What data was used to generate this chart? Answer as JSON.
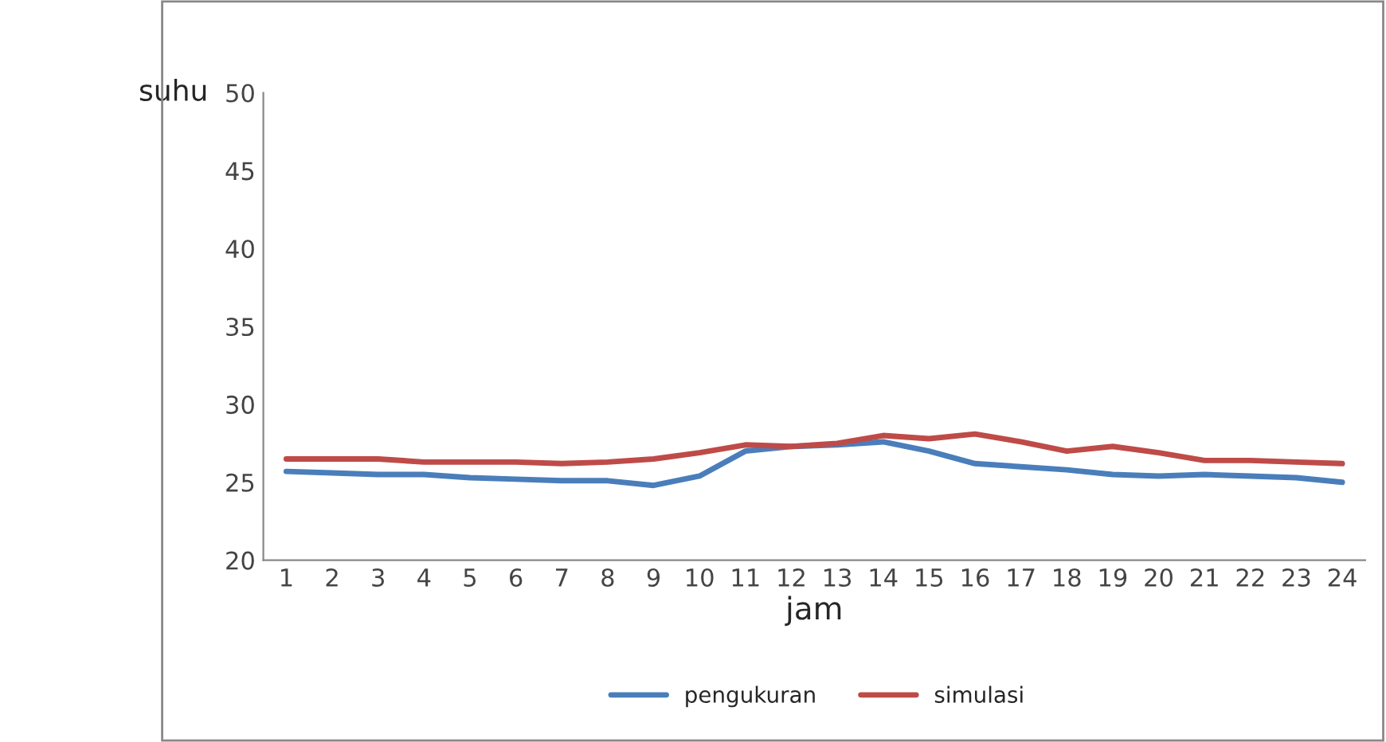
{
  "chart_data": {
    "type": "line",
    "ylabel": "suhu",
    "xlabel": "jam",
    "categories": [
      "1",
      "2",
      "3",
      "4",
      "5",
      "6",
      "7",
      "8",
      "9",
      "10",
      "11",
      "12",
      "13",
      "14",
      "15",
      "16",
      "17",
      "18",
      "19",
      "20",
      "21",
      "22",
      "23",
      "24"
    ],
    "series": [
      {
        "name": "pengukuran",
        "color": "#4a7ebb",
        "values": [
          25.7,
          25.6,
          25.5,
          25.5,
          25.3,
          25.2,
          25.1,
          25.1,
          24.8,
          25.4,
          27.0,
          27.3,
          27.4,
          27.6,
          27.0,
          26.2,
          26.0,
          25.8,
          25.5,
          25.4,
          25.5,
          25.4,
          25.3,
          25.0
        ]
      },
      {
        "name": "simulasi",
        "color": "#be4b48",
        "values": [
          26.5,
          26.5,
          26.5,
          26.3,
          26.3,
          26.3,
          26.2,
          26.3,
          26.5,
          26.9,
          27.4,
          27.3,
          27.5,
          28.0,
          27.8,
          28.1,
          27.6,
          27.0,
          27.3,
          26.9,
          26.4,
          26.4,
          26.3,
          26.2
        ]
      }
    ],
    "ylim": [
      20,
      50
    ],
    "yticks": [
      20,
      25,
      30,
      35,
      40,
      45,
      50
    ],
    "grid": false,
    "legend": "bottom",
    "marker": "none",
    "line_style": "solid"
  }
}
